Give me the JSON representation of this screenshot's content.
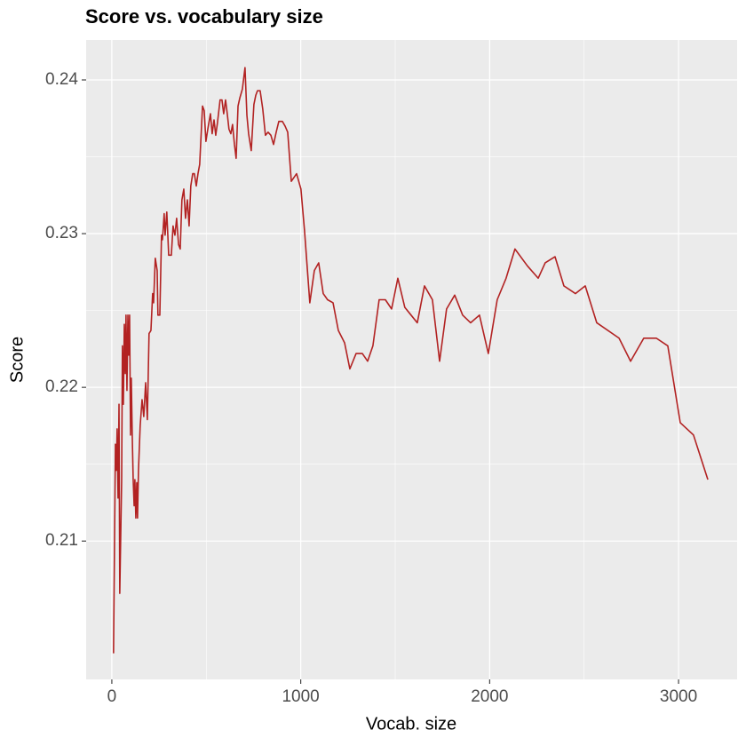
{
  "chart_data": {
    "type": "line",
    "title": "Score vs. vocabulary size",
    "x_label": "Vocab. size",
    "y_label": "Score",
    "color": "#b22222",
    "grid": true,
    "xlim": [
      -136,
      3310
    ],
    "ylim": [
      0.201,
      0.2426
    ],
    "xticks": [
      0,
      1000,
      2000,
      3000
    ],
    "yticks": [
      0.21,
      0.22,
      0.23,
      0.24
    ],
    "x": [
      9,
      19,
      24,
      28,
      33,
      38,
      42,
      52,
      56,
      61,
      66,
      71,
      75,
      80,
      85,
      89,
      94,
      99,
      103,
      108,
      113,
      118,
      122,
      127,
      132,
      136,
      141,
      150,
      160,
      169,
      179,
      188,
      197,
      207,
      216,
      221,
      230,
      240,
      244,
      254,
      263,
      268,
      277,
      282,
      291,
      301,
      315,
      324,
      334,
      343,
      353,
      362,
      371,
      381,
      390,
      400,
      409,
      418,
      428,
      437,
      447,
      456,
      465,
      480,
      489,
      498,
      508,
      522,
      531,
      541,
      550,
      559,
      573,
      583,
      592,
      602,
      611,
      620,
      630,
      639,
      649,
      658,
      668,
      677,
      691,
      705,
      715,
      724,
      738,
      752,
      762,
      771,
      785,
      799,
      813,
      827,
      842,
      856,
      870,
      884,
      903,
      917,
      931,
      950,
      978,
      1001,
      1020,
      1048,
      1072,
      1095,
      1119,
      1142,
      1171,
      1199,
      1232,
      1260,
      1293,
      1326,
      1354,
      1382,
      1415,
      1448,
      1481,
      1514,
      1551,
      1584,
      1617,
      1655,
      1697,
      1735,
      1772,
      1815,
      1857,
      1899,
      1946,
      1993,
      2040,
      2087,
      2134,
      2200,
      2257,
      2294,
      2346,
      2393,
      2454,
      2506,
      2567,
      2685,
      2746,
      2816,
      2882,
      2943,
      3009,
      3079,
      3155
    ],
    "values": [
      0.2027,
      0.2163,
      0.2146,
      0.2173,
      0.2128,
      0.2189,
      0.2066,
      0.214,
      0.2227,
      0.2189,
      0.2241,
      0.2209,
      0.2247,
      0.2198,
      0.2247,
      0.2221,
      0.2247,
      0.2169,
      0.2206,
      0.2169,
      0.214,
      0.2123,
      0.214,
      0.2115,
      0.2138,
      0.2115,
      0.2146,
      0.2175,
      0.2192,
      0.2181,
      0.2203,
      0.2179,
      0.2235,
      0.2237,
      0.2261,
      0.2255,
      0.2284,
      0.2276,
      0.2247,
      0.2247,
      0.2299,
      0.2296,
      0.2313,
      0.2299,
      0.2314,
      0.2286,
      0.2286,
      0.2305,
      0.2299,
      0.231,
      0.2293,
      0.229,
      0.2322,
      0.2329,
      0.231,
      0.2322,
      0.2305,
      0.2331,
      0.2339,
      0.2339,
      0.2331,
      0.2339,
      0.2345,
      0.2383,
      0.238,
      0.236,
      0.2368,
      0.2378,
      0.2365,
      0.2374,
      0.2364,
      0.2372,
      0.2387,
      0.2387,
      0.2378,
      0.2387,
      0.2378,
      0.2368,
      0.2365,
      0.2371,
      0.2358,
      0.2349,
      0.2383,
      0.2388,
      0.2394,
      0.2408,
      0.2377,
      0.2365,
      0.2354,
      0.2384,
      0.239,
      0.2393,
      0.2393,
      0.2381,
      0.2364,
      0.2366,
      0.2364,
      0.2358,
      0.2366,
      0.2373,
      0.2373,
      0.237,
      0.2366,
      0.2334,
      0.2339,
      0.2329,
      0.2302,
      0.2255,
      0.2276,
      0.2281,
      0.2261,
      0.2257,
      0.2255,
      0.2237,
      0.2229,
      0.2212,
      0.2222,
      0.2222,
      0.2217,
      0.2227,
      0.2257,
      0.2257,
      0.2251,
      0.2271,
      0.2252,
      0.2247,
      0.2242,
      0.2266,
      0.2257,
      0.2217,
      0.2251,
      0.226,
      0.2247,
      0.2242,
      0.2247,
      0.2222,
      0.2257,
      0.2271,
      0.229,
      0.2279,
      0.2271,
      0.2281,
      0.2285,
      0.2266,
      0.2261,
      0.2266,
      0.2242,
      0.2232,
      0.2217,
      0.2232,
      0.2232,
      0.2227,
      0.2177,
      0.2169,
      0.214
    ]
  }
}
